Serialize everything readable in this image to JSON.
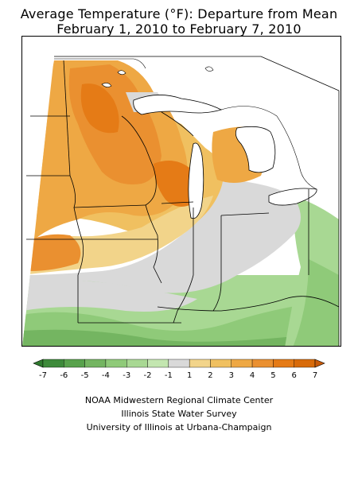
{
  "title": {
    "line1": "Average Temperature (°F): Departure from Mean",
    "line2": "February 1, 2010 to February 7, 2010"
  },
  "legend": {
    "ticks": [
      "-7",
      "-6",
      "-5",
      "-4",
      "-3",
      "-2",
      "-1",
      "1",
      "2",
      "3",
      "4",
      "5",
      "6",
      "7"
    ],
    "colors": [
      "#3d8a3a",
      "#58a24c",
      "#74b561",
      "#8fca79",
      "#a8d893",
      "#c3e6b0",
      "#d9d9d9",
      "#f2d48a",
      "#f0c060",
      "#eea844",
      "#ea9030",
      "#e57b16",
      "#d86b0a"
    ],
    "below_color": "#2f7a2e",
    "above_color": "#c85a08"
  },
  "credits": [
    "NOAA Midwestern Regional Climate Center",
    "Illinois State Water Survey",
    "University of Illinois at Urbana-Champaign"
  ]
}
